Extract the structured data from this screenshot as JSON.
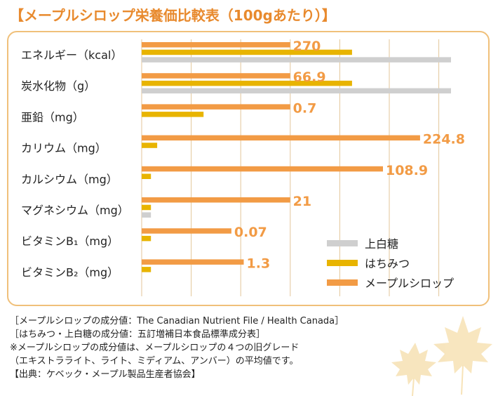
{
  "title": "【メープルシロップ栄養価比較表（100gあたり）】",
  "colors": {
    "sugar": "#cfcfcf",
    "honey": "#e8b400",
    "maple": "#f29b45",
    "label": "#f29b45",
    "frame": "#f0c07a",
    "grid": "#e3c69a"
  },
  "chart_data": {
    "type": "bar",
    "orientation": "horizontal",
    "title": "メープルシロップ栄養価比較表（100gあたり）",
    "categories": [
      "エネルギー（kcal）",
      "炭水化物（g）",
      "亜鉛（mg）",
      "カリウム（mg）",
      "カルシウム（mg）",
      "マグネシウム（mg）",
      "ビタミンB₁（mg）",
      "ビタミンB₂（mg）"
    ],
    "value_labels": [
      "270",
      "66.9",
      "0.7",
      "224.8",
      "108.9",
      "21",
      "0.07",
      "1.3"
    ],
    "series": [
      {
        "name": "メープルシロップ",
        "key": "maple",
        "relative": [
          0.48,
          0.48,
          0.48,
          0.9,
          0.78,
          0.48,
          0.29,
          0.33
        ]
      },
      {
        "name": "はちみつ",
        "key": "honey",
        "relative": [
          0.68,
          0.68,
          0.2,
          0.05,
          0.03,
          0.03,
          0.03,
          0.03
        ]
      },
      {
        "name": "上白糖",
        "key": "sugar",
        "relative": [
          1.0,
          1.0,
          0,
          0,
          0,
          0.03,
          0,
          0
        ]
      }
    ],
    "legend": [
      "上白糖",
      "はちみつ",
      "メープルシロップ"
    ],
    "legend_position": "bottom-right",
    "grid": true
  },
  "notes": [
    "［メープルシロップの成分値：The Canadian Nutrient File / Health Canada］",
    "［はちみつ・上白糖の成分値：五訂増補日本食品標準成分表］",
    "※メープルシロップの成分値は、メープルシロップの４つの旧グレード",
    "（エキストラライト、ライト、ミディアム、アンバー）の平均値です。",
    "【出典：ケベック・メープル製品生産者協会】"
  ]
}
